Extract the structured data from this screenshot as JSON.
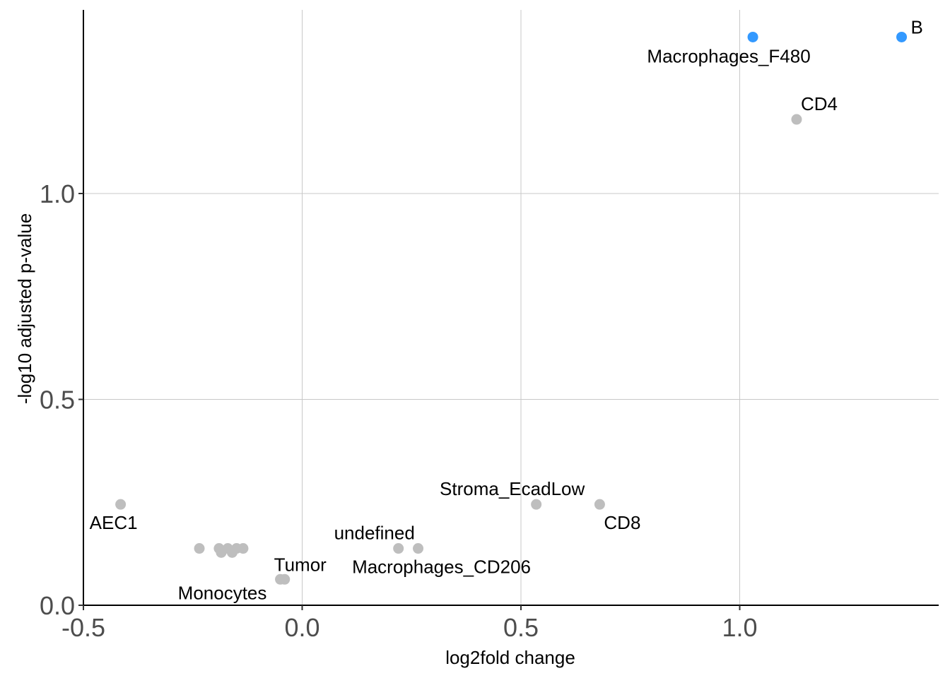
{
  "chart_data": {
    "type": "scatter",
    "title": "",
    "xlabel": "log2fold change",
    "ylabel": "-log10 adjusted p-value",
    "xlim": [
      -0.5,
      1.45
    ],
    "ylim": [
      0.0,
      1.45
    ],
    "xticks": [
      -0.5,
      0.0,
      0.5,
      1.0
    ],
    "xtick_labels": [
      "-0.5",
      "0.0",
      "0.5",
      "1.0"
    ],
    "yticks": [
      0.0,
      0.5,
      1.0
    ],
    "ytick_labels": [
      "0.0",
      "0.5",
      "1.0"
    ],
    "grid": true,
    "colors": {
      "significant": "#3399ff",
      "not_significant": "#bebebe"
    },
    "points": [
      {
        "x": 1.37,
        "y": 1.38,
        "significant": true,
        "label": "B"
      },
      {
        "x": 1.03,
        "y": 1.38,
        "significant": true,
        "label": "Macrophages_F480"
      },
      {
        "x": 1.13,
        "y": 1.18,
        "significant": false,
        "label": "CD4"
      },
      {
        "x": 0.68,
        "y": 0.245,
        "significant": false,
        "label": "CD8"
      },
      {
        "x": 0.535,
        "y": 0.245,
        "significant": false,
        "label": "Stroma_EcadLow"
      },
      {
        "x": -0.415,
        "y": 0.245,
        "significant": false,
        "label": "AEC1"
      },
      {
        "x": 0.22,
        "y": 0.138,
        "significant": false,
        "label": "undefined"
      },
      {
        "x": 0.265,
        "y": 0.138,
        "significant": false,
        "label": "Macrophages_CD206"
      },
      {
        "x": -0.04,
        "y": 0.063,
        "significant": false,
        "label": "Tumor"
      },
      {
        "x": -0.05,
        "y": 0.063,
        "significant": false,
        "label": "Monocytes"
      },
      {
        "x": -0.235,
        "y": 0.138,
        "significant": false,
        "label": ""
      },
      {
        "x": -0.19,
        "y": 0.138,
        "significant": false,
        "label": ""
      },
      {
        "x": -0.185,
        "y": 0.128,
        "significant": false,
        "label": ""
      },
      {
        "x": -0.17,
        "y": 0.138,
        "significant": false,
        "label": ""
      },
      {
        "x": -0.16,
        "y": 0.128,
        "significant": false,
        "label": ""
      },
      {
        "x": -0.15,
        "y": 0.138,
        "significant": false,
        "label": ""
      },
      {
        "x": -0.135,
        "y": 0.138,
        "significant": false,
        "label": ""
      }
    ]
  }
}
